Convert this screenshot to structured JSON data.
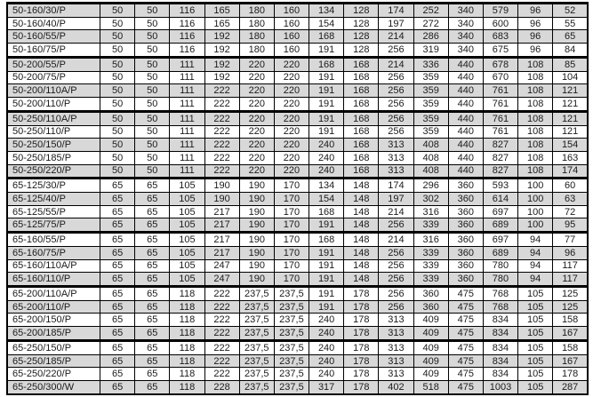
{
  "table": {
    "description": "Pump model specification table fragment (no headers visible)",
    "row_shade_color": "#d8d8d8",
    "border_color": "#000000",
    "text_color": "#1b1b1b",
    "num_value_columns": 14,
    "rows": [
      {
        "model": "50-160/30/P",
        "group_start": true,
        "values": [
          "50",
          "50",
          "116",
          "165",
          "180",
          "160",
          "134",
          "128",
          "174",
          "252",
          "340",
          "579",
          "96",
          "52"
        ]
      },
      {
        "model": "50-160/40/P",
        "group_start": false,
        "values": [
          "50",
          "50",
          "116",
          "165",
          "180",
          "160",
          "154",
          "128",
          "197",
          "272",
          "340",
          "600",
          "96",
          "55"
        ]
      },
      {
        "model": "50-160/55/P",
        "group_start": false,
        "values": [
          "50",
          "50",
          "116",
          "192",
          "180",
          "160",
          "168",
          "128",
          "214",
          "286",
          "340",
          "683",
          "96",
          "65"
        ]
      },
      {
        "model": "50-160/75/P",
        "group_start": false,
        "values": [
          "50",
          "50",
          "116",
          "192",
          "180",
          "160",
          "191",
          "128",
          "256",
          "319",
          "340",
          "675",
          "96",
          "84"
        ]
      },
      {
        "model": "50-200/55/P",
        "group_start": true,
        "values": [
          "50",
          "50",
          "111",
          "192",
          "220",
          "220",
          "168",
          "168",
          "214",
          "336",
          "440",
          "678",
          "108",
          "85"
        ]
      },
      {
        "model": "50-200/75/P",
        "group_start": false,
        "values": [
          "50",
          "50",
          "111",
          "192",
          "220",
          "220",
          "191",
          "168",
          "256",
          "359",
          "440",
          "670",
          "108",
          "104"
        ]
      },
      {
        "model": "50-200/110A/P",
        "group_start": false,
        "values": [
          "50",
          "50",
          "111",
          "222",
          "220",
          "220",
          "191",
          "168",
          "256",
          "359",
          "440",
          "761",
          "108",
          "121"
        ]
      },
      {
        "model": "50-200/110/P",
        "group_start": false,
        "values": [
          "50",
          "50",
          "111",
          "222",
          "220",
          "220",
          "191",
          "168",
          "256",
          "359",
          "440",
          "761",
          "108",
          "121"
        ]
      },
      {
        "model": "50-250/110A/P",
        "group_start": true,
        "values": [
          "50",
          "50",
          "111",
          "222",
          "220",
          "220",
          "191",
          "168",
          "256",
          "359",
          "440",
          "761",
          "108",
          "121"
        ]
      },
      {
        "model": "50-250/110/P",
        "group_start": false,
        "values": [
          "50",
          "50",
          "111",
          "222",
          "220",
          "220",
          "191",
          "168",
          "256",
          "359",
          "440",
          "761",
          "108",
          "121"
        ]
      },
      {
        "model": "50-250/150/P",
        "group_start": false,
        "values": [
          "50",
          "50",
          "111",
          "222",
          "220",
          "220",
          "240",
          "168",
          "313",
          "408",
          "440",
          "827",
          "108",
          "154"
        ]
      },
      {
        "model": "50-250/185/P",
        "group_start": false,
        "values": [
          "50",
          "50",
          "111",
          "222",
          "220",
          "220",
          "240",
          "168",
          "313",
          "408",
          "440",
          "827",
          "108",
          "163"
        ]
      },
      {
        "model": "50-250/220/P",
        "group_start": false,
        "values": [
          "50",
          "50",
          "111",
          "222",
          "220",
          "220",
          "240",
          "168",
          "313",
          "408",
          "440",
          "827",
          "108",
          "174"
        ]
      },
      {
        "model": "65-125/30/P",
        "group_start": true,
        "values": [
          "65",
          "65",
          "105",
          "190",
          "190",
          "170",
          "134",
          "148",
          "174",
          "296",
          "360",
          "593",
          "100",
          "60"
        ]
      },
      {
        "model": "65-125/40/P",
        "group_start": false,
        "values": [
          "65",
          "65",
          "105",
          "190",
          "190",
          "170",
          "154",
          "148",
          "197",
          "302",
          "360",
          "614",
          "100",
          "63"
        ]
      },
      {
        "model": "65-125/55/P",
        "group_start": false,
        "values": [
          "65",
          "65",
          "105",
          "217",
          "190",
          "170",
          "168",
          "148",
          "214",
          "316",
          "360",
          "697",
          "100",
          "72"
        ]
      },
      {
        "model": "65-125/75/P",
        "group_start": false,
        "values": [
          "65",
          "65",
          "105",
          "217",
          "190",
          "170",
          "191",
          "148",
          "256",
          "339",
          "360",
          "689",
          "100",
          "95"
        ]
      },
      {
        "model": "65-160/55/P",
        "group_start": true,
        "values": [
          "65",
          "65",
          "105",
          "217",
          "190",
          "170",
          "168",
          "148",
          "214",
          "316",
          "360",
          "697",
          "94",
          "77"
        ]
      },
      {
        "model": "65-160/75/P",
        "group_start": false,
        "values": [
          "65",
          "65",
          "105",
          "217",
          "190",
          "170",
          "191",
          "148",
          "256",
          "339",
          "360",
          "689",
          "94",
          "96"
        ]
      },
      {
        "model": "65-160/110A/P",
        "group_start": false,
        "values": [
          "65",
          "65",
          "105",
          "247",
          "190",
          "170",
          "191",
          "148",
          "256",
          "339",
          "360",
          "780",
          "94",
          "117"
        ]
      },
      {
        "model": "65-160/110/P",
        "group_start": false,
        "values": [
          "65",
          "65",
          "105",
          "247",
          "190",
          "170",
          "191",
          "148",
          "256",
          "339",
          "360",
          "780",
          "94",
          "117"
        ]
      },
      {
        "model": "65-200/110A/P",
        "group_start": true,
        "values": [
          "65",
          "65",
          "118",
          "222",
          "237,5",
          "237,5",
          "191",
          "178",
          "256",
          "360",
          "475",
          "768",
          "105",
          "125"
        ]
      },
      {
        "model": "65-200/110/P",
        "group_start": false,
        "values": [
          "65",
          "65",
          "118",
          "222",
          "237,5",
          "237,5",
          "191",
          "178",
          "256",
          "360",
          "475",
          "768",
          "105",
          "125"
        ]
      },
      {
        "model": "65-200/150/P",
        "group_start": false,
        "values": [
          "65",
          "65",
          "118",
          "222",
          "237,5",
          "237,5",
          "240",
          "178",
          "313",
          "409",
          "475",
          "834",
          "105",
          "158"
        ]
      },
      {
        "model": "65-200/185/P",
        "group_start": false,
        "values": [
          "65",
          "65",
          "118",
          "222",
          "237,5",
          "237,5",
          "240",
          "178",
          "313",
          "409",
          "475",
          "834",
          "105",
          "167"
        ]
      },
      {
        "model": "65-250/150/P",
        "group_start": true,
        "values": [
          "65",
          "65",
          "118",
          "222",
          "237,5",
          "237,5",
          "240",
          "178",
          "313",
          "409",
          "475",
          "834",
          "105",
          "158"
        ]
      },
      {
        "model": "65-250/185/P",
        "group_start": false,
        "values": [
          "65",
          "65",
          "118",
          "222",
          "237,5",
          "237,5",
          "240",
          "178",
          "313",
          "409",
          "475",
          "834",
          "105",
          "167"
        ]
      },
      {
        "model": "65-250/220/P",
        "group_start": false,
        "values": [
          "65",
          "65",
          "118",
          "222",
          "237,5",
          "237,5",
          "240",
          "178",
          "313",
          "409",
          "475",
          "834",
          "105",
          "178"
        ]
      },
      {
        "model": "65-250/300/W",
        "group_start": false,
        "values": [
          "65",
          "65",
          "118",
          "228",
          "237,5",
          "237,5",
          "317",
          "178",
          "402",
          "518",
          "475",
          "1003",
          "105",
          "287"
        ]
      }
    ]
  }
}
